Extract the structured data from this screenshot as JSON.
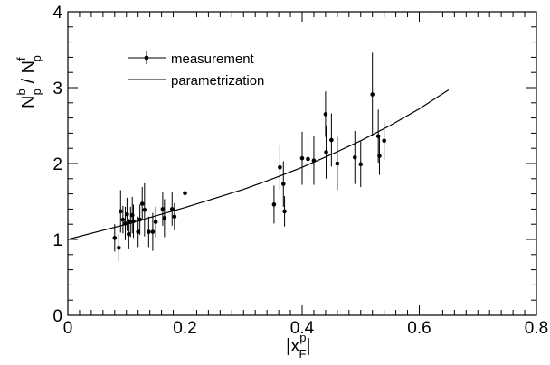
{
  "chart_data": {
    "type": "scatter",
    "xlim": [
      0,
      0.8
    ],
    "ylim": [
      0,
      4
    ],
    "x_ticks": [
      "0",
      "0.2",
      "0.4",
      "0.6",
      "0.8"
    ],
    "y_ticks": [
      "0",
      "1",
      "2",
      "3",
      "4"
    ],
    "x_ticks_values": [
      0,
      0.2,
      0.4,
      0.6,
      0.8
    ],
    "y_ticks_values": [
      0,
      1,
      2,
      3,
      4
    ],
    "xlabel": {
      "base": "|x",
      "sup": "p",
      "sub": "F",
      "end": "|"
    },
    "ylabel": {
      "n1": "N",
      "s1": "b",
      "b1": "p",
      "slash": " / ",
      "n2": "N",
      "s2": "f",
      "b2": "p"
    },
    "grid": false,
    "legend": {
      "placement": "top-left",
      "entries": [
        {
          "label": "measurement",
          "kind": "marker"
        },
        {
          "label": "parametrization",
          "kind": "line"
        }
      ]
    },
    "series": [
      {
        "name": "measurement",
        "kind": "points_with_errors",
        "points": [
          {
            "x": 0.08,
            "y": 1.02,
            "err": 0.18
          },
          {
            "x": 0.087,
            "y": 0.89,
            "err": 0.18
          },
          {
            "x": 0.09,
            "y": 1.37,
            "err": 0.28
          },
          {
            "x": 0.094,
            "y": 1.26,
            "err": 0.18
          },
          {
            "x": 0.098,
            "y": 1.21,
            "err": 0.22
          },
          {
            "x": 0.101,
            "y": 1.33,
            "err": 0.22
          },
          {
            "x": 0.104,
            "y": 1.07,
            "err": 0.2
          },
          {
            "x": 0.107,
            "y": 1.23,
            "err": 0.2
          },
          {
            "x": 0.11,
            "y": 1.32,
            "err": 0.24
          },
          {
            "x": 0.112,
            "y": 1.24,
            "err": 0.22
          },
          {
            "x": 0.12,
            "y": 1.1,
            "err": 0.2
          },
          {
            "x": 0.123,
            "y": 1.26,
            "err": 0.2
          },
          {
            "x": 0.127,
            "y": 1.47,
            "err": 0.22
          },
          {
            "x": 0.131,
            "y": 1.39,
            "err": 0.35
          },
          {
            "x": 0.138,
            "y": 1.1,
            "err": 0.2
          },
          {
            "x": 0.145,
            "y": 1.1,
            "err": 0.25
          },
          {
            "x": 0.15,
            "y": 1.23,
            "err": 0.2
          },
          {
            "x": 0.162,
            "y": 1.4,
            "err": 0.22
          },
          {
            "x": 0.165,
            "y": 1.28,
            "err": 0.25
          },
          {
            "x": 0.178,
            "y": 1.4,
            "err": 0.22
          },
          {
            "x": 0.182,
            "y": 1.3,
            "err": 0.18
          },
          {
            "x": 0.2,
            "y": 1.61,
            "err": 0.25
          },
          {
            "x": 0.352,
            "y": 1.46,
            "err": 0.25
          },
          {
            "x": 0.362,
            "y": 1.95,
            "err": 0.3
          },
          {
            "x": 0.368,
            "y": 1.73,
            "err": 0.3
          },
          {
            "x": 0.37,
            "y": 1.37,
            "err": 0.2
          },
          {
            "x": 0.4,
            "y": 2.07,
            "err": 0.35
          },
          {
            "x": 0.41,
            "y": 2.06,
            "err": 0.28
          },
          {
            "x": 0.42,
            "y": 2.04,
            "err": 0.32
          },
          {
            "x": 0.44,
            "y": 2.65,
            "err": 0.3
          },
          {
            "x": 0.441,
            "y": 2.15,
            "err": 0.35
          },
          {
            "x": 0.45,
            "y": 2.31,
            "err": 0.35
          },
          {
            "x": 0.46,
            "y": 2.0,
            "err": 0.35
          },
          {
            "x": 0.49,
            "y": 2.08,
            "err": 0.35
          },
          {
            "x": 0.5,
            "y": 1.99,
            "err": 0.3
          },
          {
            "x": 0.52,
            "y": 2.91,
            "err": 0.55
          },
          {
            "x": 0.53,
            "y": 2.36,
            "err": 0.35
          },
          {
            "x": 0.532,
            "y": 2.1,
            "err": 0.25
          },
          {
            "x": 0.54,
            "y": 2.3,
            "err": 0.25
          }
        ]
      },
      {
        "name": "parametrization",
        "kind": "line",
        "x": [
          0,
          0.05,
          0.1,
          0.15,
          0.2,
          0.25,
          0.3,
          0.35,
          0.4,
          0.45,
          0.5,
          0.55,
          0.6,
          0.65
        ],
        "y": [
          1.0,
          1.1,
          1.2,
          1.31,
          1.42,
          1.54,
          1.66,
          1.8,
          1.95,
          2.12,
          2.3,
          2.5,
          2.72,
          2.97
        ]
      }
    ]
  }
}
